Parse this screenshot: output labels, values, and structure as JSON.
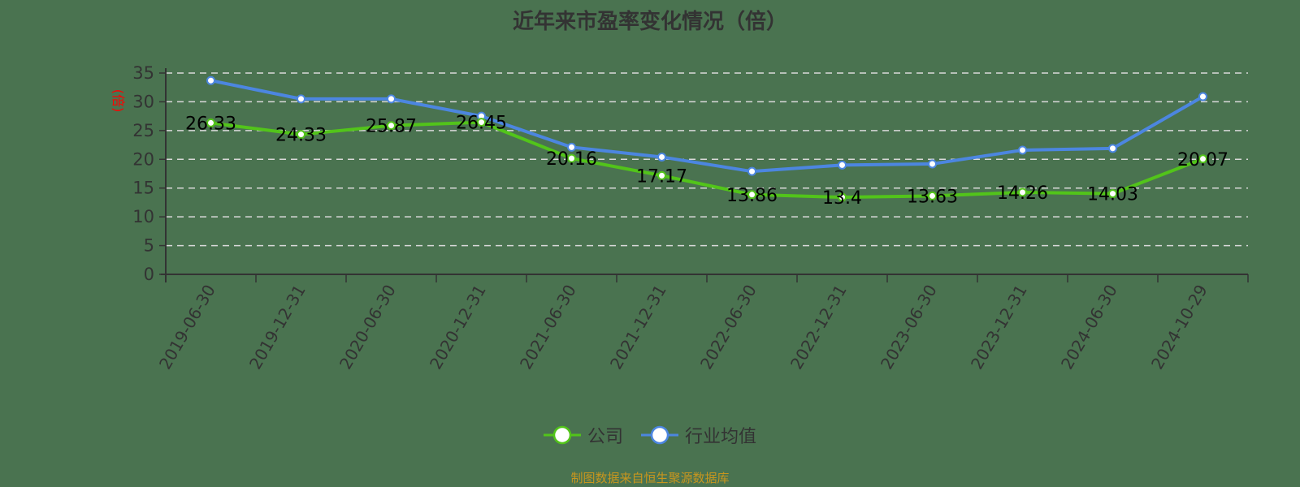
{
  "title": "近年来市盈率变化情况（倍）",
  "source_note": "制图数据来自恒生聚源数据库",
  "colors": {
    "background": "#4a7350",
    "company": "#52c41a",
    "industry": "#4c86e0",
    "axis": "#333333",
    "grid": "#d9d9d9",
    "ylabel": "#ff0000",
    "source": "#c8961e"
  },
  "legend": [
    {
      "name": "公司",
      "color": "#52c41a"
    },
    {
      "name": "行业均值",
      "color": "#4c86e0"
    }
  ],
  "chart_data": {
    "type": "line",
    "title": "近年来市盈率变化情况（倍）",
    "xlabel": "",
    "ylabel": "(倍)",
    "ylim": [
      0,
      35
    ],
    "yticks": [
      0,
      5,
      10,
      15,
      20,
      25,
      30,
      35
    ],
    "grid": true,
    "legend_position": "bottom",
    "categories": [
      "2019-06-30",
      "2019-12-31",
      "2020-06-30",
      "2020-12-31",
      "2021-06-30",
      "2021-12-31",
      "2022-06-30",
      "2022-12-31",
      "2023-06-30",
      "2023-12-31",
      "2024-06-30",
      "2024-10-29"
    ],
    "series": [
      {
        "name": "公司",
        "values": [
          26.33,
          24.33,
          25.87,
          26.45,
          20.16,
          17.17,
          13.86,
          13.4,
          13.63,
          14.26,
          14.03,
          20.07
        ],
        "data_labels": true
      },
      {
        "name": "行业均值",
        "values": [
          33.7,
          30.5,
          30.5,
          27.5,
          22.1,
          20.4,
          17.9,
          19.0,
          19.2,
          21.6,
          21.9,
          30.9
        ],
        "data_labels": false
      }
    ]
  }
}
